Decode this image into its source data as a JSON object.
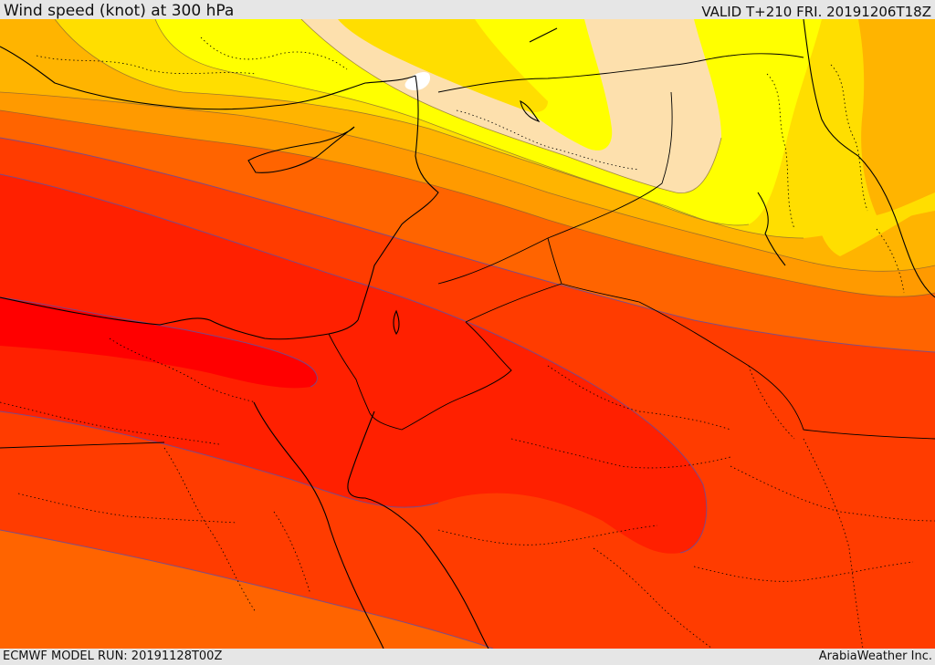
{
  "header": {
    "title": "Wind speed (knot) at 300 hPa",
    "valid": "VALID T+210 FRI. 20191206T18Z"
  },
  "footer": {
    "model_run": "ECMWF MODEL RUN: 20191128T00Z",
    "credit": "ArabiaWeather Inc."
  },
  "map": {
    "field": "wind speed at 300 hPa",
    "colors": {
      "band_weakest": "#ffffff",
      "band_pale": "#fde0ad",
      "band_yellow": "#ffff00",
      "band_gold": "#ffde00",
      "band_amber": "#ffb400",
      "band_orange": "#ff9a00",
      "band_dark_orange": "#ff6400",
      "band_orange_red": "#ff3c00",
      "band_red": "#ff2000",
      "band_core": "#ff0000",
      "contour_line": "#6a4d9a",
      "coastline": "#000000",
      "border_dotted": "#000000"
    }
  }
}
